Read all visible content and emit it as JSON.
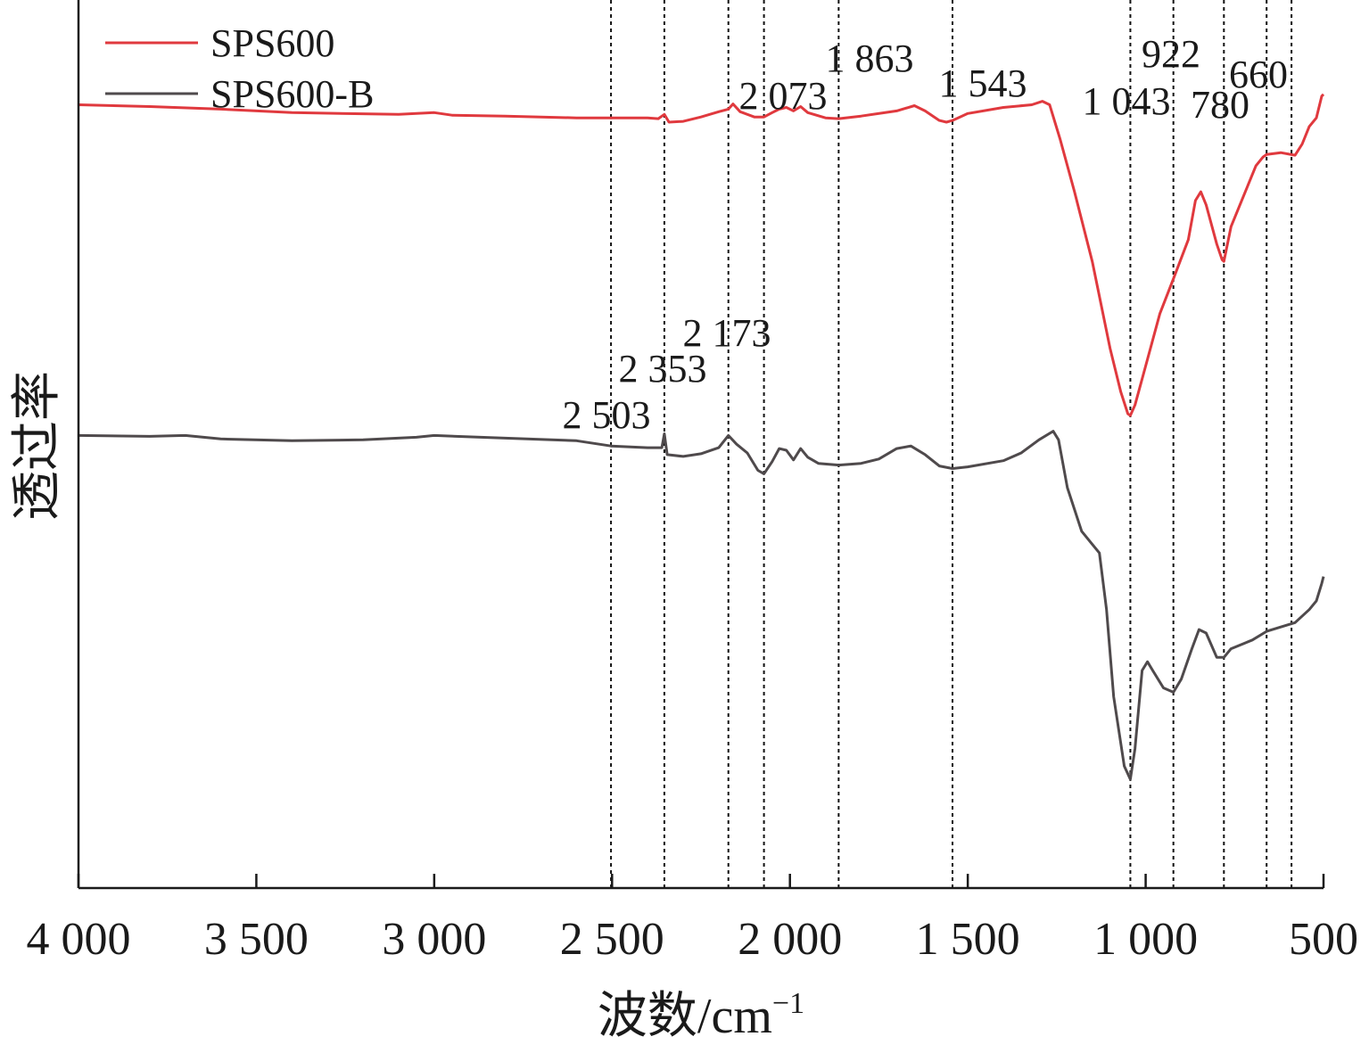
{
  "chart_data": {
    "type": "line",
    "title": "",
    "xlabel": "波数/cm",
    "xlabel_sup": "−1",
    "ylabel": "透过率",
    "xlim": [
      4000,
      500
    ],
    "x_reversed": true,
    "x_ticks": [
      4000,
      3500,
      3000,
      2500,
      2000,
      1500,
      1000,
      500
    ],
    "x_tick_labels": [
      "4 000",
      "3 500",
      "3 000",
      "2 500",
      "2 000",
      "1 500",
      "1 000",
      "500"
    ],
    "y_ticks_shown": false,
    "legend_position": "top-left",
    "series": [
      {
        "name": "SPS600",
        "color": "#e0393e",
        "points": [
          [
            4000,
            0.9
          ],
          [
            3800,
            0.898
          ],
          [
            3600,
            0.895
          ],
          [
            3400,
            0.891
          ],
          [
            3100,
            0.889
          ],
          [
            3000,
            0.891
          ],
          [
            2950,
            0.888
          ],
          [
            2800,
            0.887
          ],
          [
            2600,
            0.885
          ],
          [
            2503,
            0.885
          ],
          [
            2400,
            0.885
          ],
          [
            2370,
            0.884
          ],
          [
            2353,
            0.889
          ],
          [
            2340,
            0.88
          ],
          [
            2300,
            0.881
          ],
          [
            2250,
            0.886
          ],
          [
            2200,
            0.892
          ],
          [
            2173,
            0.895
          ],
          [
            2160,
            0.901
          ],
          [
            2140,
            0.892
          ],
          [
            2100,
            0.886
          ],
          [
            2073,
            0.886
          ],
          [
            2050,
            0.891
          ],
          [
            2030,
            0.895
          ],
          [
            2010,
            0.897
          ],
          [
            1990,
            0.893
          ],
          [
            1970,
            0.898
          ],
          [
            1950,
            0.891
          ],
          [
            1900,
            0.885
          ],
          [
            1863,
            0.884
          ],
          [
            1800,
            0.887
          ],
          [
            1700,
            0.893
          ],
          [
            1650,
            0.899
          ],
          [
            1620,
            0.893
          ],
          [
            1580,
            0.882
          ],
          [
            1560,
            0.88
          ],
          [
            1543,
            0.882
          ],
          [
            1500,
            0.89
          ],
          [
            1400,
            0.897
          ],
          [
            1320,
            0.9
          ],
          [
            1290,
            0.904
          ],
          [
            1270,
            0.9
          ],
          [
            1240,
            0.86
          ],
          [
            1200,
            0.8
          ],
          [
            1150,
            0.72
          ],
          [
            1100,
            0.62
          ],
          [
            1070,
            0.57
          ],
          [
            1050,
            0.545
          ],
          [
            1043,
            0.543
          ],
          [
            1030,
            0.555
          ],
          [
            1000,
            0.6
          ],
          [
            960,
            0.66
          ],
          [
            922,
            0.7
          ],
          [
            880,
            0.745
          ],
          [
            860,
            0.79
          ],
          [
            845,
            0.8
          ],
          [
            830,
            0.785
          ],
          [
            800,
            0.74
          ],
          [
            785,
            0.722
          ],
          [
            780,
            0.72
          ],
          [
            760,
            0.76
          ],
          [
            720,
            0.8
          ],
          [
            690,
            0.83
          ],
          [
            670,
            0.84
          ],
          [
            660,
            0.843
          ],
          [
            620,
            0.845
          ],
          [
            580,
            0.842
          ],
          [
            560,
            0.855
          ],
          [
            540,
            0.875
          ],
          [
            520,
            0.885
          ],
          [
            505,
            0.91
          ],
          [
            500,
            0.912
          ]
        ]
      },
      {
        "name": "SPS600-B",
        "color": "#4f4a4c",
        "points": [
          [
            4000,
            0.52
          ],
          [
            3800,
            0.519
          ],
          [
            3700,
            0.52
          ],
          [
            3600,
            0.516
          ],
          [
            3400,
            0.514
          ],
          [
            3200,
            0.515
          ],
          [
            3050,
            0.518
          ],
          [
            3000,
            0.52
          ],
          [
            2800,
            0.517
          ],
          [
            2600,
            0.514
          ],
          [
            2503,
            0.508
          ],
          [
            2400,
            0.506
          ],
          [
            2360,
            0.506
          ],
          [
            2353,
            0.522
          ],
          [
            2345,
            0.498
          ],
          [
            2300,
            0.496
          ],
          [
            2250,
            0.499
          ],
          [
            2200,
            0.506
          ],
          [
            2173,
            0.52
          ],
          [
            2150,
            0.51
          ],
          [
            2120,
            0.5
          ],
          [
            2090,
            0.48
          ],
          [
            2073,
            0.476
          ],
          [
            2050,
            0.49
          ],
          [
            2030,
            0.505
          ],
          [
            2010,
            0.503
          ],
          [
            1990,
            0.492
          ],
          [
            1970,
            0.505
          ],
          [
            1950,
            0.495
          ],
          [
            1920,
            0.488
          ],
          [
            1863,
            0.486
          ],
          [
            1800,
            0.488
          ],
          [
            1750,
            0.493
          ],
          [
            1700,
            0.505
          ],
          [
            1660,
            0.508
          ],
          [
            1620,
            0.498
          ],
          [
            1580,
            0.485
          ],
          [
            1543,
            0.482
          ],
          [
            1500,
            0.484
          ],
          [
            1400,
            0.491
          ],
          [
            1350,
            0.5
          ],
          [
            1300,
            0.515
          ],
          [
            1260,
            0.525
          ],
          [
            1245,
            0.515
          ],
          [
            1220,
            0.46
          ],
          [
            1180,
            0.41
          ],
          [
            1150,
            0.395
          ],
          [
            1130,
            0.385
          ],
          [
            1110,
            0.32
          ],
          [
            1090,
            0.22
          ],
          [
            1060,
            0.14
          ],
          [
            1043,
            0.125
          ],
          [
            1030,
            0.16
          ],
          [
            1010,
            0.25
          ],
          [
            995,
            0.26
          ],
          [
            980,
            0.25
          ],
          [
            950,
            0.23
          ],
          [
            922,
            0.225
          ],
          [
            900,
            0.24
          ],
          [
            870,
            0.275
          ],
          [
            850,
            0.297
          ],
          [
            830,
            0.293
          ],
          [
            800,
            0.265
          ],
          [
            780,
            0.265
          ],
          [
            760,
            0.275
          ],
          [
            700,
            0.285
          ],
          [
            660,
            0.295
          ],
          [
            620,
            0.3
          ],
          [
            580,
            0.305
          ],
          [
            540,
            0.32
          ],
          [
            520,
            0.33
          ],
          [
            505,
            0.35
          ],
          [
            500,
            0.358
          ]
        ]
      }
    ],
    "reference_lines": [
      {
        "x": 2503,
        "label": "2 503"
      },
      {
        "x": 2353,
        "label": "2 353"
      },
      {
        "x": 2173,
        "label": "2 173"
      },
      {
        "x": 2073,
        "label": "2 073"
      },
      {
        "x": 1863,
        "label": "1 863"
      },
      {
        "x": 1543,
        "label": "1 543"
      },
      {
        "x": 1043,
        "label": "1 043"
      },
      {
        "x": 922,
        "label": "922"
      },
      {
        "x": 780,
        "label": "780"
      },
      {
        "x": 660,
        "label": "660"
      },
      {
        "x": 590,
        "label": ""
      }
    ]
  }
}
